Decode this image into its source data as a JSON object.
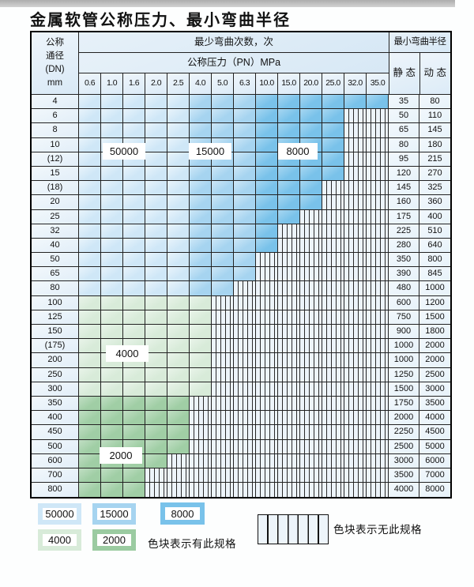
{
  "title": "金属软管公称压力、最小弯曲半径",
  "table": {
    "dn_header": [
      "公称",
      "通径",
      "(DN)",
      "mm"
    ],
    "bend_header": "最少弯曲次数，次",
    "pn_header": "公称压力（PN）MPa",
    "radius_header": "最小弯曲半径",
    "static_header": "静 态",
    "dynamic_header": "动 态",
    "pressures": [
      "0.6",
      "1.0",
      "1.6",
      "2.0",
      "2.5",
      "4.0",
      "5.0",
      "6.3",
      "10.0",
      "15.0",
      "20.0",
      "25.0",
      "32.0",
      "35.0"
    ],
    "rows": [
      {
        "dn": "4",
        "static": "35",
        "dynamic": "80",
        "colored": 14,
        "palette": "blue"
      },
      {
        "dn": "6",
        "static": "50",
        "dynamic": "110",
        "colored": 12,
        "palette": "blue"
      },
      {
        "dn": "8",
        "static": "65",
        "dynamic": "145",
        "colored": 12,
        "palette": "blue"
      },
      {
        "dn": "10",
        "static": "80",
        "dynamic": "180",
        "colored": 12,
        "palette": "blue"
      },
      {
        "dn": "(12)",
        "static": "95",
        "dynamic": "215",
        "colored": 12,
        "palette": "blue"
      },
      {
        "dn": "15",
        "static": "120",
        "dynamic": "270",
        "colored": 12,
        "palette": "blue"
      },
      {
        "dn": "(18)",
        "static": "145",
        "dynamic": "325",
        "colored": 11,
        "palette": "blue"
      },
      {
        "dn": "20",
        "static": "160",
        "dynamic": "360",
        "colored": 11,
        "palette": "blue"
      },
      {
        "dn": "25",
        "static": "175",
        "dynamic": "400",
        "colored": 10,
        "palette": "blue"
      },
      {
        "dn": "32",
        "static": "225",
        "dynamic": "510",
        "colored": 9,
        "palette": "blue"
      },
      {
        "dn": "40",
        "static": "280",
        "dynamic": "640",
        "colored": 9,
        "palette": "blue"
      },
      {
        "dn": "50",
        "static": "350",
        "dynamic": "800",
        "colored": 8,
        "palette": "blue"
      },
      {
        "dn": "65",
        "static": "390",
        "dynamic": "845",
        "colored": 8,
        "palette": "blue"
      },
      {
        "dn": "80",
        "static": "480",
        "dynamic": "1000",
        "colored": 7,
        "palette": "blue"
      },
      {
        "dn": "100",
        "static": "600",
        "dynamic": "1200",
        "colored": 6,
        "palette": "green-light"
      },
      {
        "dn": "125",
        "static": "750",
        "dynamic": "1500",
        "colored": 6,
        "palette": "green-light"
      },
      {
        "dn": "150",
        "static": "900",
        "dynamic": "1800",
        "colored": 6,
        "palette": "green-light"
      },
      {
        "dn": "(175)",
        "static": "1000",
        "dynamic": "2000",
        "colored": 6,
        "palette": "green-light"
      },
      {
        "dn": "200",
        "static": "1000",
        "dynamic": "2000",
        "colored": 6,
        "palette": "green-light"
      },
      {
        "dn": "250",
        "static": "1250",
        "dynamic": "2500",
        "colored": 6,
        "palette": "green-light"
      },
      {
        "dn": "300",
        "static": "1500",
        "dynamic": "3000",
        "colored": 6,
        "palette": "green-light"
      },
      {
        "dn": "350",
        "static": "1750",
        "dynamic": "3500",
        "colored": 5,
        "palette": "green-dark"
      },
      {
        "dn": "400",
        "static": "2000",
        "dynamic": "4000",
        "colored": 5,
        "palette": "green-dark"
      },
      {
        "dn": "450",
        "static": "2250",
        "dynamic": "4500",
        "colored": 5,
        "palette": "green-dark"
      },
      {
        "dn": "500",
        "static": "2500",
        "dynamic": "5000",
        "colored": 5,
        "palette": "green-dark"
      },
      {
        "dn": "600",
        "static": "3000",
        "dynamic": "6000",
        "colored": 4,
        "palette": "green-dark"
      },
      {
        "dn": "700",
        "static": "3500",
        "dynamic": "7000",
        "colored": 3,
        "palette": "green-dark"
      },
      {
        "dn": "800",
        "static": "4000",
        "dynamic": "8000",
        "colored": 3,
        "palette": "green-dark"
      }
    ]
  },
  "zone_labels": [
    {
      "text": "50000"
    },
    {
      "text": "15000"
    },
    {
      "text": "8000"
    },
    {
      "text": "4000"
    },
    {
      "text": "2000"
    }
  ],
  "legend": {
    "items": [
      {
        "label": "50000",
        "color": "#cfe7f7"
      },
      {
        "label": "15000",
        "color": "#a6d4f0"
      },
      {
        "label": "8000",
        "color": "#79c2ea"
      },
      {
        "label": "4000",
        "color": "#d8ebd9"
      },
      {
        "label": "2000",
        "color": "#9bcba1"
      }
    ],
    "has_spec_text": "色块表示有此规格",
    "no_spec_text": "色块表示无此规格"
  },
  "colors": {
    "spec_blue_50000": "#cfe7f7",
    "spec_blue_15000": "#a6d4f0",
    "spec_blue_8000": "#79c2ea",
    "spec_green_4000": "#d8ebd9",
    "spec_green_2000": "#a0cea5",
    "grid_line": "#222222",
    "header_bg": "#dcebf7"
  }
}
